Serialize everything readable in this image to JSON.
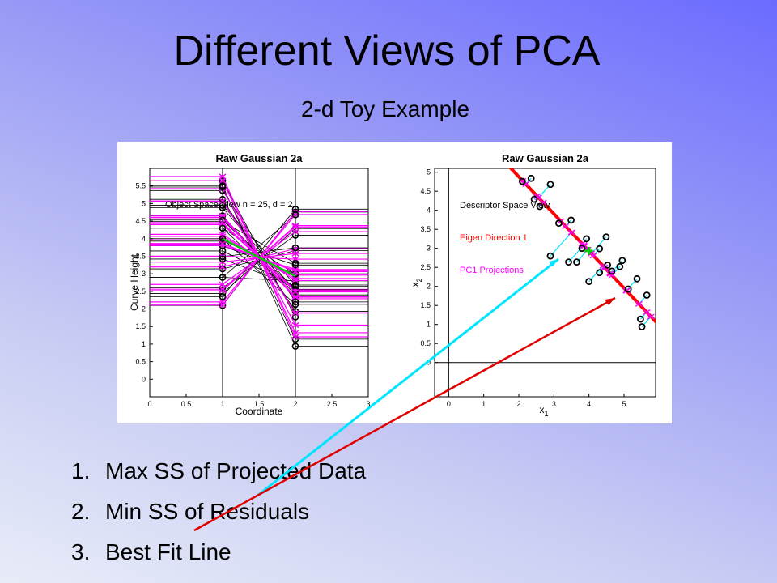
{
  "title": "Different Views of PCA",
  "subtitle": "2-d Toy Example",
  "list": [
    {
      "number": "1.",
      "text": "Max SS of Projected Data"
    },
    {
      "number": "2.",
      "text": "Min SS of Residuals"
    },
    {
      "number": "3.",
      "text": "Best Fit Line"
    }
  ],
  "chart_data": [
    {
      "type": "parallel",
      "title": "Raw Gaussian 2a",
      "annotation": "Object Space View n = 25, d = 2",
      "xlabel": "Coordinate",
      "ylabel": "Curve Height",
      "xlim": [
        0,
        3
      ],
      "xticks": [
        0,
        0.5,
        1,
        1.5,
        2,
        2.5,
        3
      ],
      "ylim": [
        -0.5,
        6.0
      ],
      "yticks": [
        0,
        0.5,
        1,
        1.5,
        2,
        2.5,
        3,
        3.5,
        4,
        4.5,
        5,
        5.5
      ],
      "data_color": "#000000",
      "projection_color": "#ff00ff",
      "mean_color": "#00cc00"
    },
    {
      "type": "scatter",
      "title": "Raw Gaussian 2a",
      "annotations": [
        {
          "text": "Descriptor Space View",
          "color": "#000000"
        },
        {
          "text": "Eigen Direction 1",
          "color": "#ff0000"
        },
        {
          "text": "PC1 Projections",
          "color": "#ff00ff"
        }
      ],
      "xlabel": "x",
      "xlabel_sub": "1",
      "ylabel": "x",
      "ylabel_sub": "2",
      "xlim": [
        -0.4,
        5.9
      ],
      "xticks": [
        0,
        1,
        2,
        3,
        4,
        5
      ],
      "ylim": [
        -0.9,
        5.1
      ],
      "yticks": [
        0,
        0.5,
        1,
        1.5,
        2,
        2.5,
        3,
        3.5,
        4,
        4.5,
        5
      ],
      "x": [
        2.1,
        2.35,
        2.44,
        2.6,
        2.9,
        3.14,
        3.49,
        2.9,
        3.42,
        3.65,
        3.93,
        4.3,
        4.49,
        4.0,
        4.3,
        4.65,
        4.95,
        4.88,
        5.37,
        5.65,
        5.12,
        5.47,
        5.51,
        3.8,
        4.53
      ],
      "y": [
        4.76,
        4.84,
        4.29,
        4.1,
        4.68,
        3.66,
        3.74,
        2.8,
        2.64,
        2.64,
        3.25,
        2.99,
        3.3,
        2.13,
        2.36,
        2.4,
        2.68,
        2.52,
        2.2,
        1.77,
        1.93,
        1.14,
        0.94,
        3.0,
        2.56
      ],
      "data_color": "#000000",
      "line_color": "#ff0000",
      "projection_color": "#ff00ff",
      "residual_color": "#00e5ff",
      "mean_color": "#00cc00"
    }
  ]
}
